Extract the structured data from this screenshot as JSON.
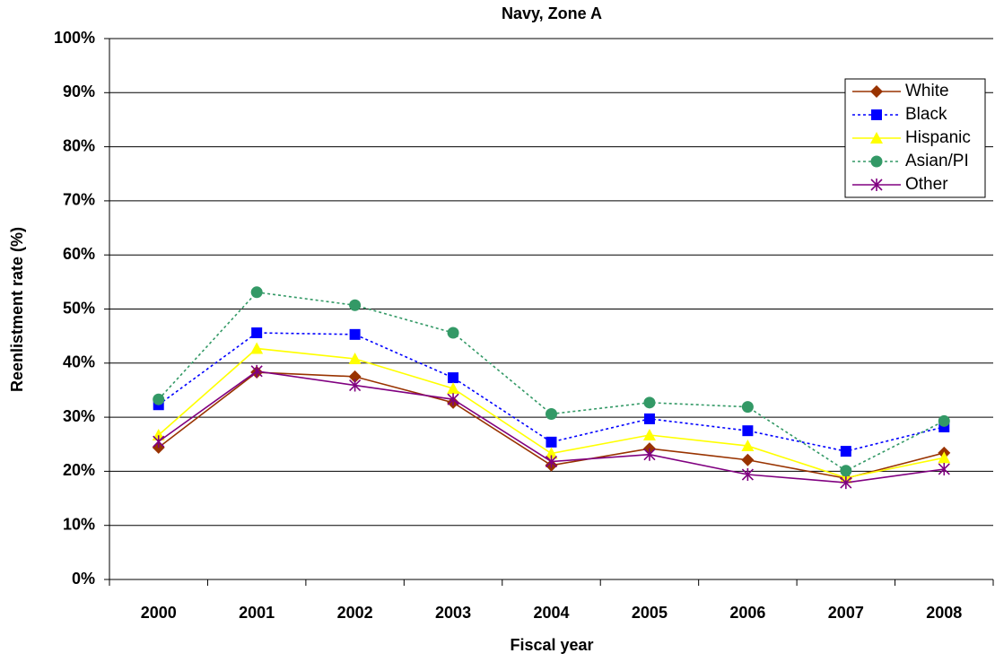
{
  "chart_data": {
    "type": "line",
    "title": "Navy, Zone A",
    "x_label": "Fiscal year",
    "y_label": "Reenlistment rate (%)",
    "categories": [
      "2000",
      "2001",
      "2002",
      "2003",
      "2004",
      "2005",
      "2006",
      "2007",
      "2008"
    ],
    "series": [
      {
        "name": "White",
        "color": "#993300",
        "marker": "diamond",
        "dashed": false,
        "values": [
          24.4,
          38.3,
          37.5,
          32.7,
          21.1,
          24.2,
          22.1,
          18.7,
          23.4
        ]
      },
      {
        "name": "Black",
        "color": "#0000ff",
        "marker": "square",
        "dashed": true,
        "values": [
          32.3,
          45.6,
          45.3,
          37.3,
          25.4,
          29.7,
          27.5,
          23.7,
          28.2
        ]
      },
      {
        "name": "Hispanic",
        "color": "#ffff00",
        "marker": "triangle",
        "dashed": false,
        "values": [
          26.7,
          42.7,
          40.8,
          35.3,
          23.3,
          26.7,
          24.7,
          18.8,
          22.5
        ]
      },
      {
        "name": "Asian/PI",
        "color": "#339966",
        "marker": "circle",
        "dashed": true,
        "values": [
          33.3,
          53.1,
          50.7,
          45.6,
          30.6,
          32.7,
          31.9,
          20.1,
          29.3
        ]
      },
      {
        "name": "Other",
        "color": "#800080",
        "marker": "star",
        "dashed": false,
        "values": [
          25.5,
          38.5,
          35.9,
          33.3,
          21.8,
          23.1,
          19.4,
          17.9,
          20.4
        ]
      }
    ],
    "ylim": [
      0,
      100
    ],
    "yticks": [
      {
        "value": 0,
        "label": "0%"
      },
      {
        "value": 10,
        "label": "10%"
      },
      {
        "value": 20,
        "label": "20%"
      },
      {
        "value": 30,
        "label": "30%"
      },
      {
        "value": 40,
        "label": "40%"
      },
      {
        "value": 50,
        "label": "50%"
      },
      {
        "value": 60,
        "label": "60%"
      },
      {
        "value": 70,
        "label": "70%"
      },
      {
        "value": 80,
        "label": "80%"
      },
      {
        "value": 90,
        "label": "90%"
      },
      {
        "value": 100,
        "label": "100%"
      }
    ],
    "grid": true,
    "legend": "upper right"
  }
}
